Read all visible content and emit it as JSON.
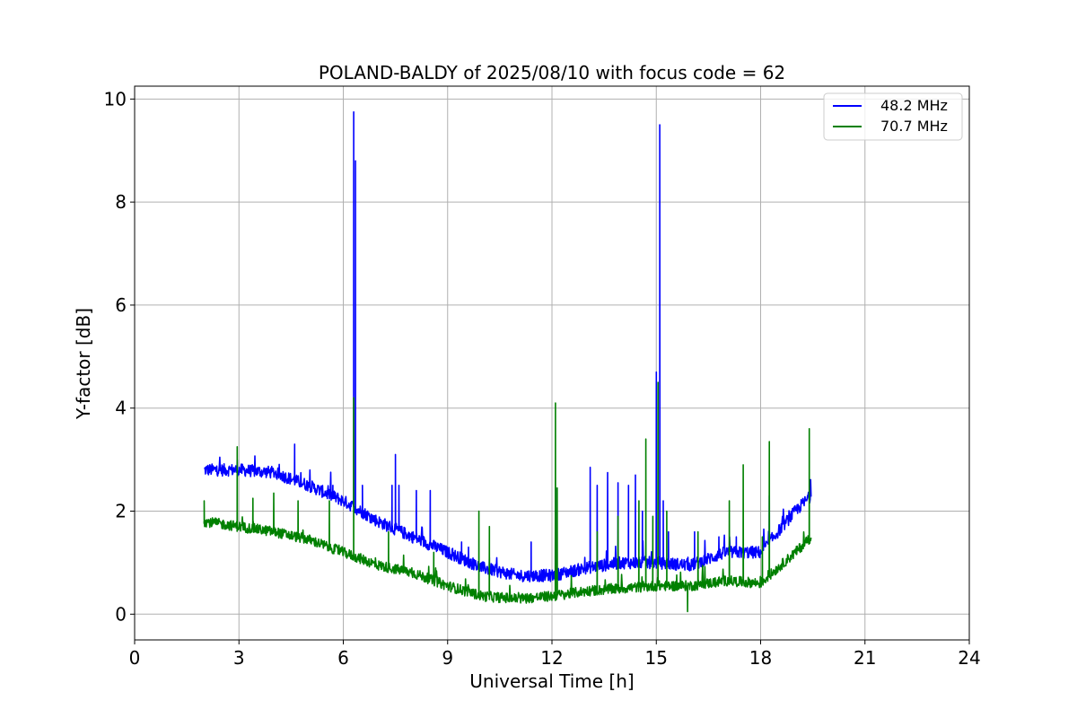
{
  "chart_data": {
    "type": "line",
    "title": "POLAND-BALDY of 2025/08/10 with focus code = 62",
    "xlabel": "Universal Time [h]",
    "ylabel": "Y-factor [dB]",
    "xlim": [
      0,
      24
    ],
    "ylim": [
      -0.5,
      10.25
    ],
    "xticks": [
      0,
      3,
      6,
      9,
      12,
      15,
      18,
      21,
      24
    ],
    "yticks": [
      0,
      2,
      4,
      6,
      8,
      10
    ],
    "grid": true,
    "legend_position": "top-right",
    "series": [
      {
        "name": "48.2 MHz",
        "color": "#0000ff",
        "noise": 0.12,
        "baseline": [
          [
            2.0,
            2.8
          ],
          [
            3.0,
            2.8
          ],
          [
            4.0,
            2.75
          ],
          [
            5.0,
            2.5
          ],
          [
            6.0,
            2.2
          ],
          [
            7.0,
            1.8
          ],
          [
            8.0,
            1.5
          ],
          [
            9.0,
            1.2
          ],
          [
            10.0,
            0.9
          ],
          [
            11.0,
            0.75
          ],
          [
            12.0,
            0.75
          ],
          [
            13.0,
            0.9
          ],
          [
            14.0,
            1.0
          ],
          [
            15.0,
            1.0
          ],
          [
            16.0,
            0.95
          ],
          [
            17.0,
            1.2
          ],
          [
            18.0,
            1.2
          ],
          [
            18.5,
            1.6
          ],
          [
            19.0,
            2.0
          ],
          [
            19.45,
            2.3
          ]
        ],
        "spikes": [
          [
            2.95,
            3.0
          ],
          [
            4.6,
            3.3
          ],
          [
            5.7,
            2.5
          ],
          [
            6.3,
            9.75
          ],
          [
            6.35,
            8.8
          ],
          [
            6.55,
            2.5
          ],
          [
            7.4,
            2.5
          ],
          [
            7.5,
            3.1
          ],
          [
            7.6,
            2.5
          ],
          [
            8.1,
            2.4
          ],
          [
            8.5,
            2.4
          ],
          [
            9.4,
            1.4
          ],
          [
            9.6,
            1.3
          ],
          [
            10.2,
            1.1
          ],
          [
            11.4,
            1.4
          ],
          [
            12.1,
            2.45
          ],
          [
            13.1,
            2.85
          ],
          [
            13.3,
            2.5
          ],
          [
            13.6,
            2.75
          ],
          [
            13.9,
            2.55
          ],
          [
            14.2,
            2.5
          ],
          [
            14.4,
            2.7
          ],
          [
            14.6,
            2.0
          ],
          [
            15.0,
            4.7
          ],
          [
            15.1,
            9.5
          ],
          [
            15.2,
            2.2
          ],
          [
            15.35,
            1.6
          ],
          [
            16.1,
            1.6
          ],
          [
            16.8,
            1.5
          ],
          [
            17.3,
            1.5
          ],
          [
            18.25,
            2.3
          ]
        ]
      },
      {
        "name": "70.7 MHz",
        "color": "#008000",
        "noise": 0.1,
        "baseline": [
          [
            2.0,
            1.8
          ],
          [
            3.0,
            1.7
          ],
          [
            4.0,
            1.6
          ],
          [
            5.0,
            1.45
          ],
          [
            6.0,
            1.2
          ],
          [
            7.0,
            0.95
          ],
          [
            8.0,
            0.8
          ],
          [
            9.0,
            0.55
          ],
          [
            10.0,
            0.35
          ],
          [
            11.0,
            0.3
          ],
          [
            12.0,
            0.35
          ],
          [
            13.0,
            0.45
          ],
          [
            14.0,
            0.5
          ],
          [
            15.0,
            0.55
          ],
          [
            16.0,
            0.55
          ],
          [
            17.0,
            0.65
          ],
          [
            18.0,
            0.6
          ],
          [
            18.5,
            0.9
          ],
          [
            19.0,
            1.2
          ],
          [
            19.45,
            1.5
          ]
        ],
        "spikes": [
          [
            2.0,
            2.2
          ],
          [
            2.95,
            3.25
          ],
          [
            3.4,
            2.25
          ],
          [
            4.0,
            2.35
          ],
          [
            4.7,
            2.2
          ],
          [
            5.6,
            2.2
          ],
          [
            6.3,
            4.2
          ],
          [
            7.3,
            1.6
          ],
          [
            8.6,
            1.2
          ],
          [
            9.9,
            2.0
          ],
          [
            10.2,
            1.7
          ],
          [
            12.1,
            4.1
          ],
          [
            12.15,
            2.45
          ],
          [
            13.3,
            1.6
          ],
          [
            13.9,
            1.9
          ],
          [
            14.5,
            2.2
          ],
          [
            14.7,
            3.4
          ],
          [
            14.9,
            1.9
          ],
          [
            15.05,
            4.5
          ],
          [
            15.3,
            2.0
          ],
          [
            15.9,
            0.05
          ],
          [
            16.2,
            1.6
          ],
          [
            17.1,
            2.2
          ],
          [
            17.5,
            2.9
          ],
          [
            18.05,
            1.5
          ],
          [
            18.25,
            3.35
          ],
          [
            19.4,
            3.6
          ]
        ]
      }
    ]
  }
}
